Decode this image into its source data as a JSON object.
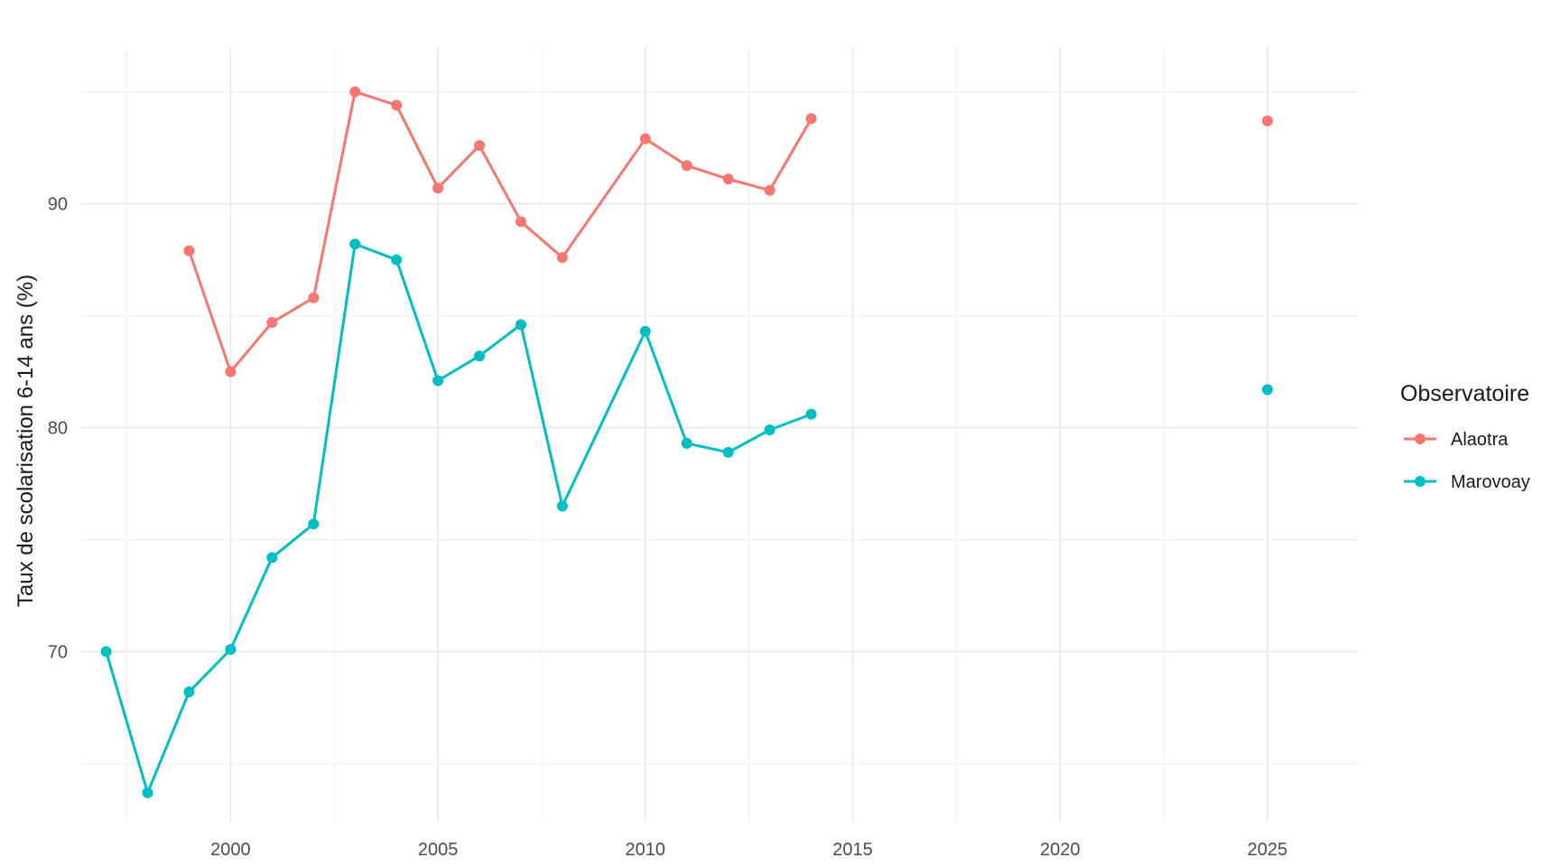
{
  "chart_data": {
    "type": "line",
    "title": "",
    "xlabel": "",
    "ylabel": "Taux de scolarisation 6-14 ans (%)",
    "xlim": [
      1996.4,
      2027.2
    ],
    "ylim": [
      62.4,
      97.0
    ],
    "x_ticks": [
      2000,
      2005,
      2010,
      2015,
      2020,
      2025
    ],
    "x_minor_ticks": [
      1997.5,
      2002.5,
      2007.5,
      2012.5,
      2017.5,
      2022.5
    ],
    "y_ticks": [
      70,
      80,
      90
    ],
    "y_minor_ticks": [
      65,
      75,
      85,
      95
    ],
    "grid": true,
    "legend": {
      "title": "Observatoire",
      "position": "right"
    },
    "series": [
      {
        "name": "Alaotra",
        "color": "#F8766D",
        "segments": [
          [
            {
              "x": 1999,
              "y": 87.9
            },
            {
              "x": 2000,
              "y": 82.5
            },
            {
              "x": 2001,
              "y": 84.7
            },
            {
              "x": 2002,
              "y": 85.8
            },
            {
              "x": 2003,
              "y": 95.0
            },
            {
              "x": 2004,
              "y": 94.4
            },
            {
              "x": 2005,
              "y": 90.7
            },
            {
              "x": 2006,
              "y": 92.6
            },
            {
              "x": 2007,
              "y": 89.2
            },
            {
              "x": 2008,
              "y": 87.6
            },
            {
              "x": 2010,
              "y": 92.9
            },
            {
              "x": 2011,
              "y": 91.7
            },
            {
              "x": 2012,
              "y": 91.1
            },
            {
              "x": 2013,
              "y": 90.6
            },
            {
              "x": 2014,
              "y": 93.8
            }
          ],
          [
            {
              "x": 2025,
              "y": 93.7
            }
          ]
        ]
      },
      {
        "name": "Marovoay",
        "color": "#00BFC4",
        "segments": [
          [
            {
              "x": 1997,
              "y": 70.0
            },
            {
              "x": 1998,
              "y": 63.7
            },
            {
              "x": 1999,
              "y": 68.2
            },
            {
              "x": 2000,
              "y": 70.1
            },
            {
              "x": 2001,
              "y": 74.2
            },
            {
              "x": 2002,
              "y": 75.7
            },
            {
              "x": 2003,
              "y": 88.2
            },
            {
              "x": 2004,
              "y": 87.5
            },
            {
              "x": 2005,
              "y": 82.1
            },
            {
              "x": 2006,
              "y": 83.2
            },
            {
              "x": 2007,
              "y": 84.6
            },
            {
              "x": 2008,
              "y": 76.5
            },
            {
              "x": 2010,
              "y": 84.3
            },
            {
              "x": 2011,
              "y": 79.3
            },
            {
              "x": 2012,
              "y": 78.9
            },
            {
              "x": 2013,
              "y": 79.9
            },
            {
              "x": 2014,
              "y": 80.6
            }
          ],
          [
            {
              "x": 2025,
              "y": 81.7
            }
          ]
        ]
      }
    ]
  }
}
